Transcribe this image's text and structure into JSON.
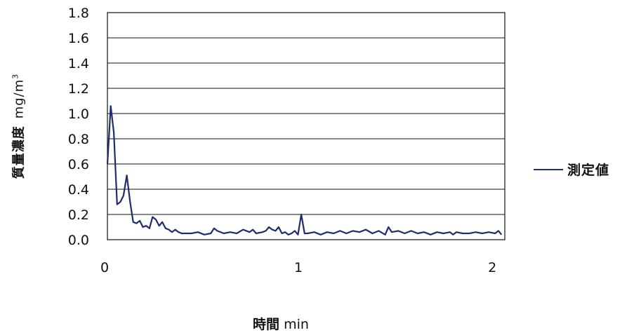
{
  "chart_data": {
    "type": "line",
    "title": "",
    "xlabel_main": "時間",
    "xlabel_unit": "min",
    "ylabel_main": "質量濃度",
    "ylabel_unit": "mg/m",
    "ylabel_unit_sup": "3",
    "xlim": [
      0,
      2.05
    ],
    "ylim": [
      0,
      1.8
    ],
    "yticks": [
      "0.0",
      "0.2",
      "0.4",
      "0.6",
      "0.8",
      "1.0",
      "1.2",
      "1.4",
      "1.6",
      "1.8"
    ],
    "xticks": [
      "0",
      "1",
      "2"
    ],
    "grid": "horizontal",
    "legend_position": "right",
    "series": [
      {
        "name": "測定値",
        "color": "#1f2d6b",
        "x": [
          0.0,
          0.017,
          0.033,
          0.05,
          0.067,
          0.083,
          0.1,
          0.117,
          0.133,
          0.15,
          0.167,
          0.183,
          0.2,
          0.217,
          0.233,
          0.25,
          0.267,
          0.283,
          0.3,
          0.317,
          0.333,
          0.35,
          0.367,
          0.383,
          0.4,
          0.433,
          0.467,
          0.5,
          0.533,
          0.55,
          0.567,
          0.6,
          0.633,
          0.667,
          0.7,
          0.733,
          0.75,
          0.767,
          0.8,
          0.817,
          0.833,
          0.85,
          0.867,
          0.883,
          0.9,
          0.917,
          0.933,
          0.95,
          0.967,
          0.983,
          1.0,
          1.017,
          1.033,
          1.067,
          1.1,
          1.133,
          1.167,
          1.2,
          1.233,
          1.267,
          1.3,
          1.333,
          1.367,
          1.4,
          1.433,
          1.45,
          1.467,
          1.5,
          1.533,
          1.567,
          1.6,
          1.633,
          1.667,
          1.7,
          1.733,
          1.767,
          1.783,
          1.8,
          1.833,
          1.867,
          1.9,
          1.933,
          1.967,
          2.0,
          2.017,
          2.033
        ],
        "values": [
          0.6,
          1.06,
          0.85,
          0.28,
          0.3,
          0.35,
          0.51,
          0.3,
          0.14,
          0.13,
          0.15,
          0.1,
          0.11,
          0.09,
          0.18,
          0.16,
          0.11,
          0.14,
          0.09,
          0.08,
          0.06,
          0.08,
          0.06,
          0.05,
          0.05,
          0.05,
          0.06,
          0.04,
          0.05,
          0.09,
          0.07,
          0.05,
          0.06,
          0.05,
          0.08,
          0.06,
          0.08,
          0.05,
          0.06,
          0.07,
          0.1,
          0.08,
          0.07,
          0.1,
          0.05,
          0.06,
          0.04,
          0.05,
          0.07,
          0.04,
          0.2,
          0.05,
          0.05,
          0.06,
          0.04,
          0.06,
          0.05,
          0.07,
          0.05,
          0.07,
          0.06,
          0.08,
          0.05,
          0.07,
          0.04,
          0.1,
          0.06,
          0.07,
          0.05,
          0.07,
          0.05,
          0.06,
          0.04,
          0.06,
          0.05,
          0.06,
          0.04,
          0.06,
          0.05,
          0.05,
          0.06,
          0.05,
          0.06,
          0.05,
          0.07,
          0.04
        ]
      }
    ]
  }
}
